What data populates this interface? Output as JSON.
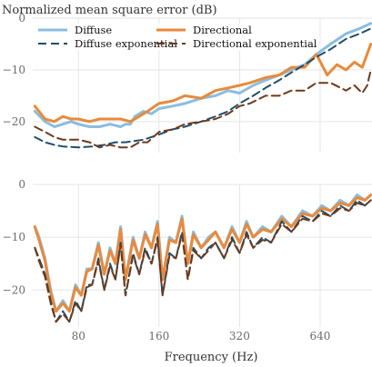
{
  "chart_data": {
    "type": "line",
    "ylabel": "Normalized mean square error (dB)",
    "xlabel": "Frequency (Hz)",
    "x_scale": "log",
    "xlim": [
      54,
      1000
    ],
    "x_ticks": [
      80,
      160,
      320,
      640
    ],
    "x_tick_labels": [
      "80",
      "160",
      "320",
      "640"
    ],
    "grid": true,
    "legend": {
      "placement": "top",
      "columns": 2
    },
    "colors": {
      "diffuse": "#8bbddf",
      "directional": "#e88a3c",
      "diffuse_exponential": "#1f4e6b",
      "directional_exponential": "#6e3a1c"
    },
    "panels": [
      {
        "ylim": [
          -26,
          0
        ],
        "y_ticks": [
          0,
          -10,
          -20
        ],
        "y_tick_labels": [
          "0",
          "−10",
          "−20"
        ],
        "series": [
          {
            "key": "diffuse",
            "name": "Diffuse",
            "style": "solid",
            "x": [
              55,
              60,
              65,
              70,
              75,
              80,
              88,
              96,
              105,
              115,
              120,
              125,
              130,
              140,
              150,
              160,
              180,
              200,
              230,
              260,
              290,
              320,
              360,
              400,
              450,
              500,
              560,
              620,
              700,
              800,
              900,
              990
            ],
            "y": [
              -18,
              -20,
              -21,
              -20.5,
              -20,
              -20.5,
              -21,
              -21,
              -20.5,
              -21,
              -20.5,
              -20.5,
              -19,
              -18,
              -18.5,
              -17.5,
              -17,
              -16.5,
              -15.5,
              -15,
              -14,
              -14.5,
              -13,
              -12,
              -11,
              -10,
              -9,
              -7,
              -5,
              -3,
              -2,
              -1
            ]
          },
          {
            "key": "directional",
            "name": "Directional",
            "style": "solid",
            "x": [
              55,
              60,
              65,
              70,
              75,
              80,
              88,
              96,
              105,
              115,
              125,
              135,
              145,
              160,
              180,
              200,
              230,
              260,
              290,
              320,
              350,
              400,
              450,
              500,
              560,
              620,
              680,
              740,
              800,
              860,
              920,
              990
            ],
            "y": [
              -17,
              -19.5,
              -20,
              -19,
              -19.5,
              -19.5,
              -20,
              -19.5,
              -19.5,
              -19.5,
              -20,
              -19,
              -18,
              -16.5,
              -16,
              -15,
              -15.5,
              -14,
              -13.5,
              -13,
              -12.5,
              -11.5,
              -11,
              -9.5,
              -9.5,
              -7,
              -11,
              -9,
              -10,
              -8.5,
              -9.5,
              -5
            ]
          },
          {
            "key": "diffuse_exponential",
            "name": "Diffuse exponential",
            "style": "dashed",
            "x": [
              55,
              60,
              65,
              70,
              80,
              90,
              100,
              110,
              120,
              140,
              160,
              180,
              200,
              230,
              260,
              290,
              320,
              360,
              400,
              450,
              500,
              560,
              620,
              700,
              800,
              900,
              990
            ],
            "y": [
              -23,
              -24,
              -24.5,
              -24.8,
              -25,
              -24.8,
              -24.5,
              -24,
              -24,
              -23.5,
              -22.5,
              -21.5,
              -21,
              -20,
              -19,
              -18,
              -16.5,
              -15,
              -13.5,
              -12,
              -10.5,
              -9,
              -7.5,
              -6,
              -4,
              -3,
              -2
            ]
          },
          {
            "key": "directional_exponential",
            "name": "Directional exponential",
            "style": "dashed",
            "x": [
              55,
              60,
              65,
              70,
              80,
              88,
              96,
              105,
              115,
              125,
              135,
              145,
              160,
              180,
              200,
              230,
              260,
              290,
              320,
              350,
              400,
              450,
              500,
              560,
              620,
              700,
              800,
              860,
              920,
              960,
              990
            ],
            "y": [
              -21,
              -22,
              -23,
              -23.5,
              -23.5,
              -24,
              -25,
              -24.5,
              -25,
              -25,
              -24,
              -24,
              -22,
              -21.5,
              -20.5,
              -20,
              -19.5,
              -18.5,
              -17,
              -16.5,
              -15,
              -15,
              -14,
              -14,
              -12.5,
              -12.5,
              -14,
              -13,
              -14.5,
              -13,
              -10
            ]
          }
        ]
      },
      {
        "ylim": [
          -27,
          0
        ],
        "y_ticks": [
          0,
          -10,
          -20
        ],
        "y_tick_labels": [
          "0",
          "−10",
          "−20"
        ],
        "series": [
          {
            "key": "diffuse",
            "name": "Diffuse",
            "style": "solid",
            "x": [
              55,
              57,
              60,
              63,
              66,
              70,
              74,
              78,
              82,
              86,
              90,
              95,
              100,
              105,
              110,
              115,
              120,
              128,
              135,
              142,
              150,
              158,
              165,
              175,
              185,
              195,
              205,
              215,
              230,
              245,
              260,
              280,
              300,
              320,
              340,
              360,
              390,
              420,
              460,
              500,
              550,
              600,
              650,
              700,
              760,
              820,
              880,
              940,
              990
            ],
            "y": [
              -8,
              -10,
              -14,
              -20,
              -24,
              -22,
              -24,
              -19,
              -21,
              -16,
              -16,
              -11,
              -17,
              -12,
              -15,
              -8,
              -18,
              -10,
              -14,
              -9,
              -12,
              -7,
              -18,
              -10,
              -11,
              -6,
              -15,
              -9,
              -12,
              -10,
              -9,
              -12,
              -8,
              -11,
              -7,
              -10,
              -8,
              -9,
              -6,
              -8,
              -5,
              -6,
              -4,
              -5,
              -3,
              -4,
              -2,
              -3,
              -2
            ]
          },
          {
            "key": "directional",
            "name": "Directional",
            "style": "solid",
            "x": [
              55,
              57,
              60,
              63,
              66,
              70,
              74,
              78,
              82,
              86,
              90,
              95,
              100,
              105,
              110,
              115,
              120,
              128,
              135,
              142,
              150,
              158,
              165,
              175,
              185,
              195,
              205,
              215,
              230,
              245,
              260,
              280,
              300,
              320,
              340,
              360,
              390,
              420,
              460,
              500,
              550,
              600,
              650,
              700,
              760,
              820,
              880,
              940,
              990
            ],
            "y": [
              -8,
              -10.5,
              -14.5,
              -20.5,
              -24,
              -22.5,
              -24,
              -19.5,
              -21,
              -16.5,
              -16,
              -11.5,
              -17,
              -12.5,
              -15,
              -8.5,
              -18,
              -10.5,
              -14,
              -9.5,
              -12,
              -7.5,
              -18,
              -10.5,
              -11,
              -6.5,
              -15,
              -9.5,
              -12,
              -10.5,
              -9,
              -12,
              -8.5,
              -11,
              -7.5,
              -10,
              -8.5,
              -9,
              -6.5,
              -8,
              -5.5,
              -6,
              -4.5,
              -5,
              -3.5,
              -4,
              -2.5,
              -3,
              -2
            ]
          },
          {
            "key": "diffuse_exponential",
            "name": "Diffuse exponential",
            "style": "dashed",
            "x": [
              55,
              57,
              60,
              63,
              66,
              70,
              74,
              78,
              82,
              86,
              90,
              95,
              100,
              105,
              110,
              115,
              120,
              128,
              135,
              142,
              150,
              158,
              165,
              175,
              185,
              195,
              205,
              215,
              230,
              245,
              260,
              280,
              300,
              320,
              340,
              360,
              390,
              420,
              460,
              500,
              550,
              600,
              650,
              700,
              760,
              820,
              880,
              940,
              990
            ],
            "y": [
              -12,
              -14,
              -17,
              -22,
              -26,
              -24,
              -26,
              -22,
              -24,
              -19,
              -19,
              -14,
              -20,
              -15,
              -18,
              -11,
              -21,
              -13,
              -17,
              -12,
              -15,
              -10,
              -21,
              -13,
              -14,
              -9,
              -18,
              -12,
              -14,
              -12,
              -11,
              -14,
              -10,
              -13,
              -9,
              -12,
              -10,
              -11,
              -7,
              -9,
              -6,
              -7,
              -5,
              -6,
              -4,
              -5,
              -3,
              -4,
              -3
            ]
          },
          {
            "key": "directional_exponential",
            "name": "Directional exponential",
            "style": "dashed",
            "x": [
              55,
              57,
              60,
              63,
              66,
              70,
              74,
              78,
              82,
              86,
              90,
              95,
              100,
              105,
              110,
              115,
              120,
              128,
              135,
              142,
              150,
              158,
              165,
              175,
              185,
              195,
              205,
              215,
              230,
              245,
              260,
              280,
              300,
              320,
              340,
              360,
              390,
              420,
              460,
              500,
              550,
              600,
              650,
              700,
              760,
              820,
              880,
              940,
              990
            ],
            "y": [
              -12,
              -14.5,
              -17.5,
              -22.5,
              -26,
              -24.5,
              -26,
              -22.5,
              -24,
              -19.5,
              -19,
              -14.5,
              -20,
              -15.5,
              -18,
              -11.5,
              -21,
              -13.5,
              -17,
              -12.5,
              -15,
              -10.5,
              -21,
              -13.5,
              -14,
              -9.5,
              -18,
              -12.5,
              -14,
              -12.5,
              -11,
              -14,
              -10.5,
              -13,
              -9.5,
              -12,
              -10.5,
              -11,
              -7.5,
              -9,
              -6.5,
              -7,
              -5.5,
              -6,
              -4.5,
              -5,
              -3.5,
              -4,
              -3
            ]
          }
        ]
      }
    ]
  }
}
